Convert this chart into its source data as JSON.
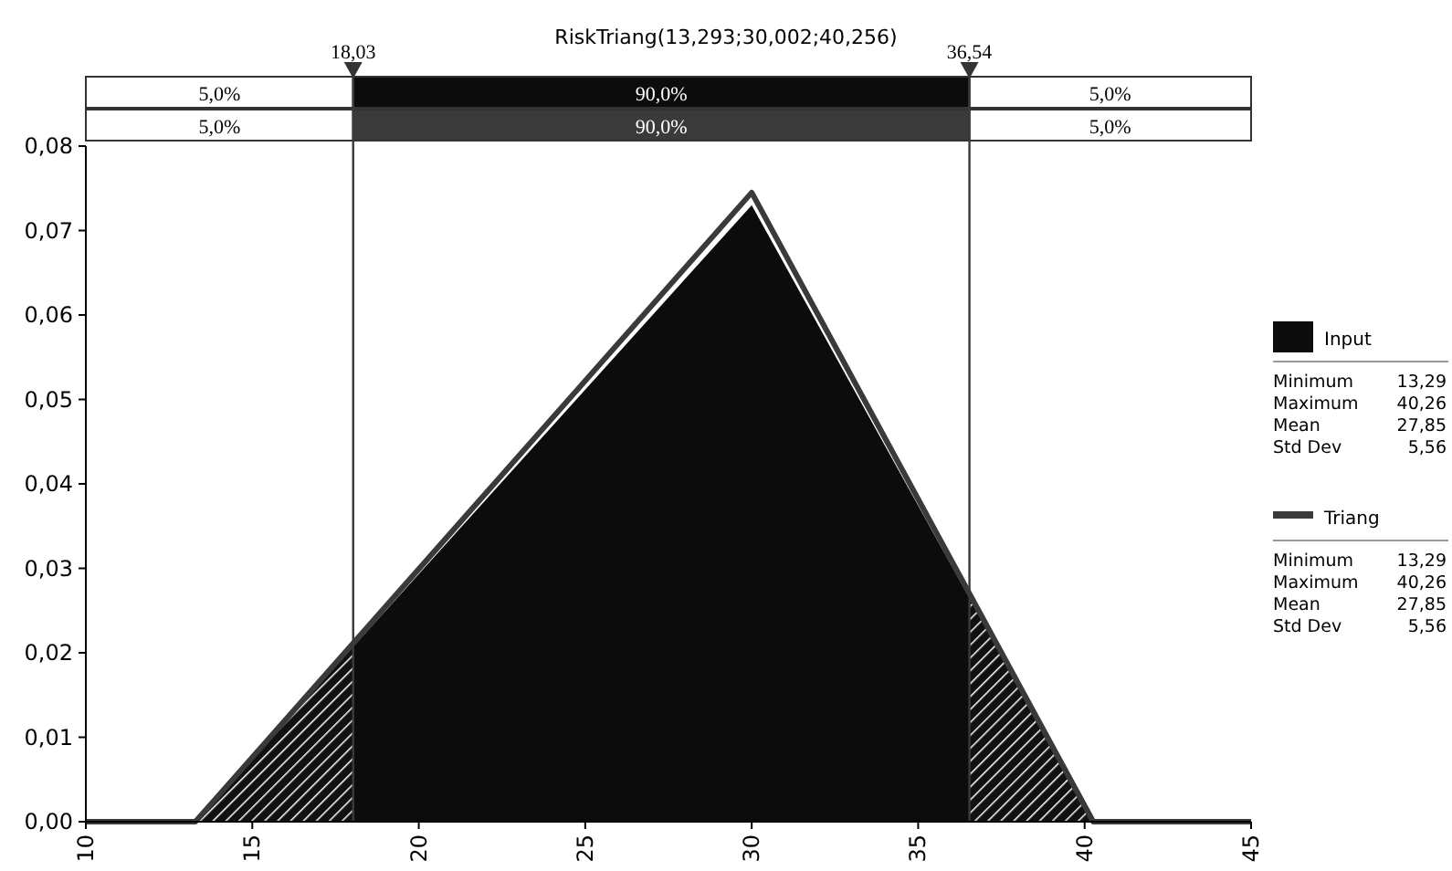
{
  "chart_data": {
    "type": "area",
    "subtitle": "RiskTriang(13,293;30,002;40,256)",
    "x": [
      10,
      13.29,
      30,
      40.26,
      45
    ],
    "series": [
      {
        "name": "Input",
        "color": "#0c0c0c",
        "values": [
          0,
          0,
          0.073,
          0,
          0
        ]
      },
      {
        "name": "Triang",
        "type": "line",
        "color": "#3a3a3a",
        "values": [
          0,
          0,
          0.0745,
          0,
          0
        ]
      }
    ],
    "xlim": [
      10,
      45
    ],
    "xticks": [
      10,
      15,
      20,
      25,
      30,
      35,
      40,
      45
    ],
    "ylim": [
      0,
      0.08
    ],
    "yticks": [
      {
        "value": 0,
        "label": "0,00"
      },
      {
        "value": 0.01,
        "label": "0,01"
      },
      {
        "value": 0.02,
        "label": "0,02"
      },
      {
        "value": 0.03,
        "label": "0,03"
      },
      {
        "value": 0.04,
        "label": "0,04"
      },
      {
        "value": 0.05,
        "label": "0,05"
      },
      {
        "value": 0.06,
        "label": "0,06"
      },
      {
        "value": 0.07,
        "label": "0,07"
      },
      {
        "value": 0.08,
        "label": "0,08"
      }
    ],
    "ref_lines": [
      {
        "axis": "x",
        "value": 18.03,
        "label": "18,03",
        "color": "#3a3a3a"
      },
      {
        "axis": "x",
        "value": 36.54,
        "label": "36,54",
        "color": "#3a3a3a"
      }
    ],
    "annotations": [
      "5,0%",
      "90,0%",
      "5,0%",
      "5,0%",
      "90,0%",
      "5,0%",
      "Minimum 13,29",
      "Maximum 40,26",
      "Mean 27,85",
      "Std Dev 5,56",
      "Minimum 13,29",
      "Maximum 40,26",
      "Mean 27,85",
      "Std Dev 5,56"
    ],
    "legend": "right",
    "line_style": "solid",
    "marker": "none"
  }
}
